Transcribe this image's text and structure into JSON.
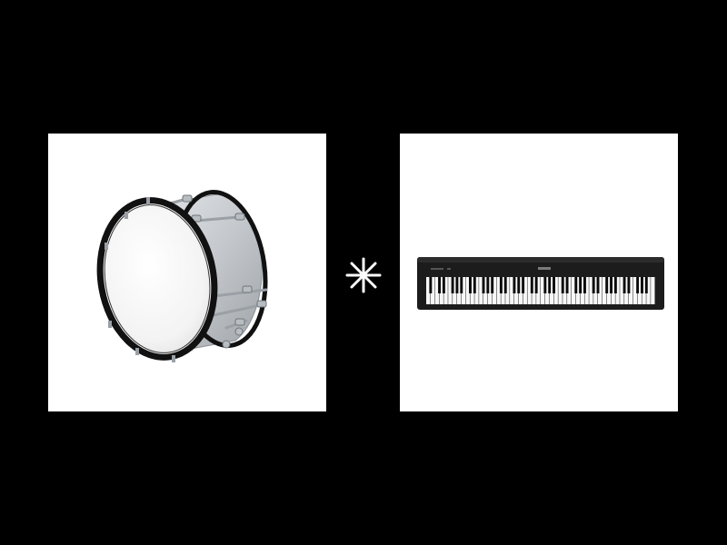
{
  "canvas": {
    "background_color": "#000000",
    "panel_color": "#ffffff"
  },
  "left_panel": {
    "icon": "bass-drum-icon",
    "hoop_color": "#111111",
    "shell_color": "#c9cdd1",
    "head_color": "#f4f4f4"
  },
  "separator": {
    "icon": "asterisk-icon",
    "color": "#ffffff"
  },
  "right_panel": {
    "icon": "digital-piano-icon",
    "body_color": "#1c1c1c",
    "white_key_color": "#f7f7f7",
    "black_key_color": "#0a0a0a"
  }
}
